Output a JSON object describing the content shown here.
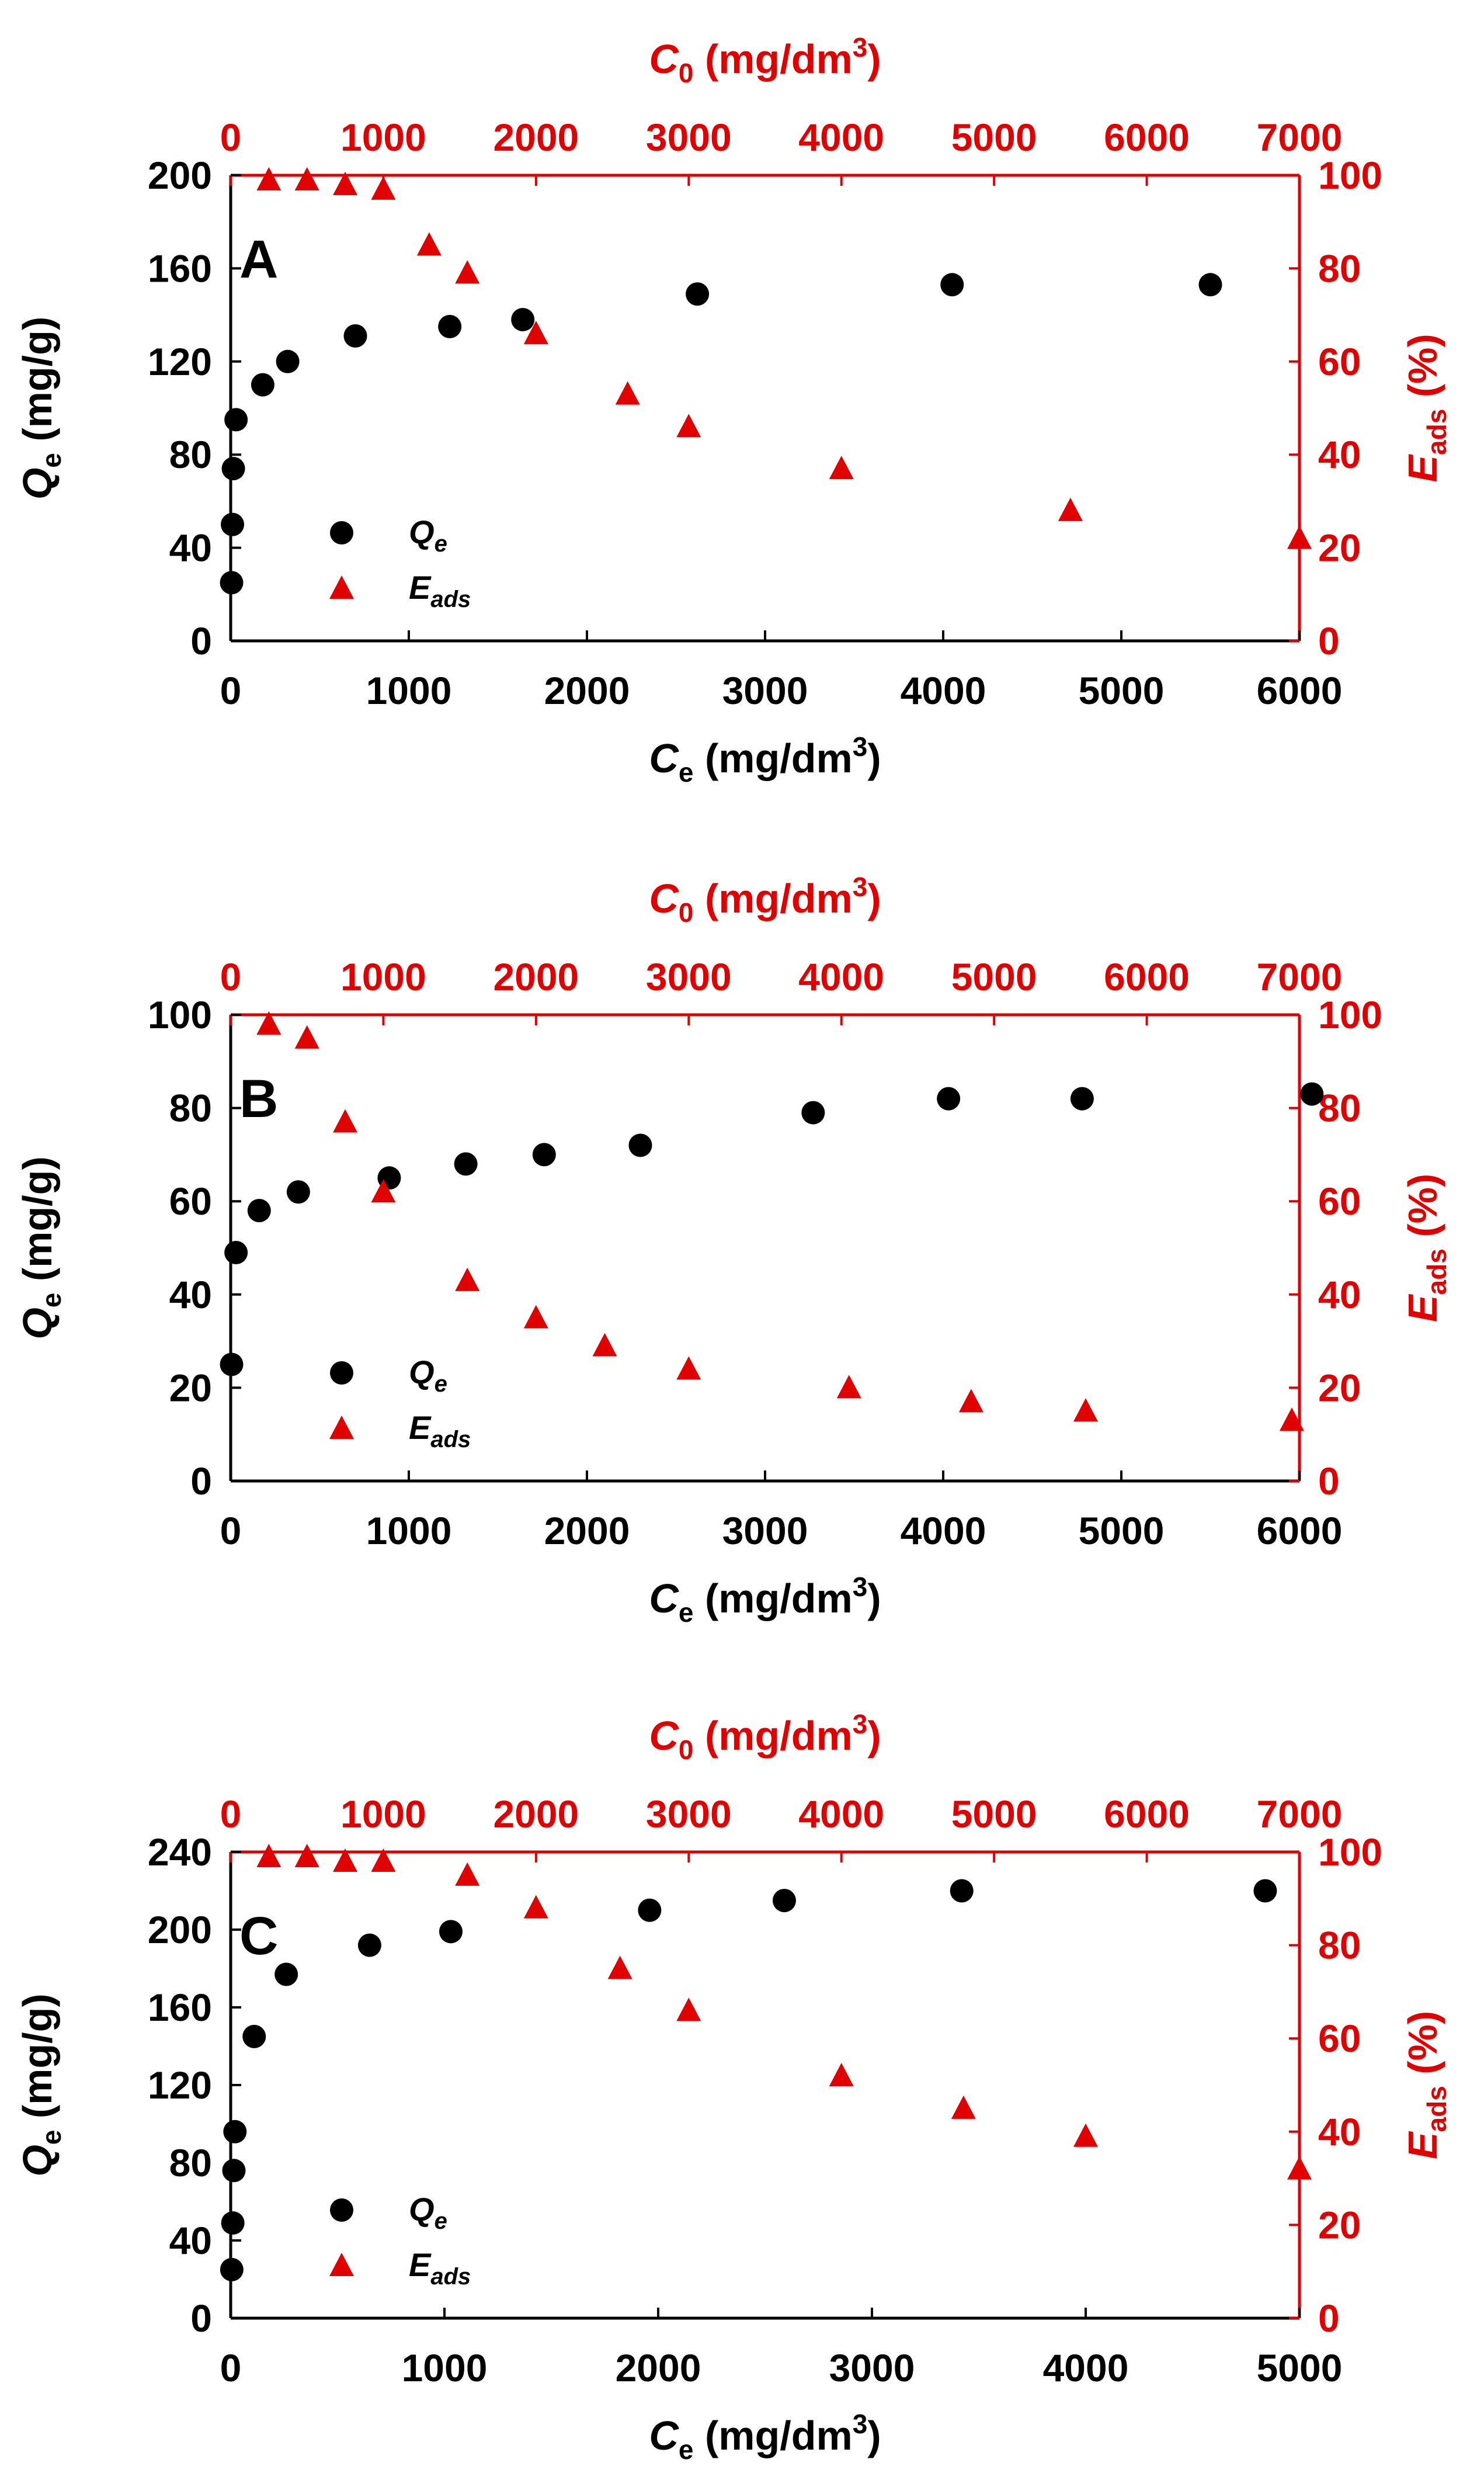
{
  "colors": {
    "qe_series": "#000000",
    "eads_series": "#e00000",
    "axis_black": "#000000",
    "axis_red": "#e00000"
  },
  "axis_titles": {
    "top": {
      "main": "C",
      "sub": "0",
      "unit": " (mg/dm",
      "sup": "3",
      "close": ")"
    },
    "bottom": {
      "main": "C",
      "sub": "e",
      "unit": " (mg/dm",
      "sup": "3",
      "close": ")"
    },
    "left": {
      "main": "Q",
      "sub": "e",
      "unit": " (mg/g)"
    },
    "right": {
      "main": "E",
      "sub": "ads",
      "unit": " (%)"
    }
  },
  "legend": {
    "qe": {
      "main": "Q",
      "sub": "e"
    },
    "eads": {
      "main": "E",
      "sub": "ads"
    }
  },
  "chart_data": [
    {
      "type": "scatter",
      "panel_label": "A",
      "x_bottom": {
        "label": "Ce (mg/dm3)",
        "lim": [
          0,
          6000
        ],
        "ticks": [
          "0",
          "1000",
          "2000",
          "3000",
          "4000",
          "5000",
          "6000"
        ]
      },
      "x_top": {
        "label": "C0 (mg/dm3)",
        "lim": [
          0,
          7000
        ],
        "ticks": [
          "0",
          "1000",
          "2000",
          "3000",
          "4000",
          "5000",
          "6000",
          "7000"
        ]
      },
      "y_left": {
        "label": "Qe (mg/g)",
        "lim": [
          0,
          200
        ],
        "ticks": [
          "0",
          "40",
          "80",
          "120",
          "160",
          "200"
        ]
      },
      "y_right": {
        "label": "Eads (%)",
        "lim": [
          0,
          100
        ],
        "ticks": [
          "0",
          "20",
          "40",
          "60",
          "80",
          "100"
        ]
      },
      "series": [
        {
          "name": "Qe",
          "marker": "circle",
          "x_axis": "bottom",
          "y_axis": "left",
          "x": [
            5,
            10,
            15,
            30,
            180,
            320,
            700,
            1230,
            1640,
            2620,
            4050,
            5500
          ],
          "y": [
            25,
            50,
            74,
            95,
            110,
            120,
            131,
            135,
            138,
            149,
            153,
            153
          ]
        },
        {
          "name": "Eads",
          "marker": "triangle",
          "x_axis": "top",
          "y_axis": "right",
          "x": [
            250,
            500,
            750,
            1000,
            1300,
            1550,
            2000,
            2600,
            3000,
            4000,
            5500,
            7000
          ],
          "y": [
            99,
            99,
            98,
            97,
            85,
            79,
            66,
            53,
            46,
            37,
            28,
            22
          ]
        }
      ]
    },
    {
      "type": "scatter",
      "panel_label": "B",
      "x_bottom": {
        "label": "Ce (mg/dm3)",
        "lim": [
          0,
          6000
        ],
        "ticks": [
          "0",
          "1000",
          "2000",
          "3000",
          "4000",
          "5000",
          "6000"
        ]
      },
      "x_top": {
        "label": "C0 (mg/dm3)",
        "lim": [
          0,
          7000
        ],
        "ticks": [
          "0",
          "1000",
          "2000",
          "3000",
          "4000",
          "5000",
          "6000",
          "7000"
        ]
      },
      "y_left": {
        "label": "Qe (mg/g)",
        "lim": [
          0,
          100
        ],
        "ticks": [
          "0",
          "20",
          "40",
          "60",
          "80",
          "100"
        ]
      },
      "y_right": {
        "label": "Eads (%)",
        "lim": [
          0,
          100
        ],
        "ticks": [
          "0",
          "20",
          "40",
          "60",
          "80",
          "100"
        ]
      },
      "series": [
        {
          "name": "Qe",
          "marker": "circle",
          "x_axis": "bottom",
          "y_axis": "left",
          "x": [
            5,
            30,
            160,
            380,
            890,
            1320,
            1760,
            2300,
            3270,
            4030,
            4780,
            6070
          ],
          "y": [
            25,
            49,
            58,
            62,
            65,
            68,
            70,
            72,
            79,
            82,
            82,
            83
          ]
        },
        {
          "name": "Eads",
          "marker": "triangle",
          "x_axis": "top",
          "y_axis": "right",
          "x": [
            250,
            500,
            750,
            1000,
            1550,
            2000,
            2450,
            3000,
            4050,
            4850,
            5600,
            6950
          ],
          "y": [
            98,
            95,
            77,
            62,
            43,
            35,
            29,
            24,
            20,
            17,
            15,
            13
          ]
        }
      ]
    },
    {
      "type": "scatter",
      "panel_label": "C",
      "x_bottom": {
        "label": "Ce (mg/dm3)",
        "lim": [
          0,
          5000
        ],
        "ticks": [
          "0",
          "1000",
          "2000",
          "3000",
          "4000",
          "5000"
        ]
      },
      "x_top": {
        "label": "C0 (mg/dm3)",
        "lim": [
          0,
          7000
        ],
        "ticks": [
          "0",
          "1000",
          "2000",
          "3000",
          "4000",
          "5000",
          "6000",
          "7000"
        ]
      },
      "y_left": {
        "label": "Qe (mg/g)",
        "lim": [
          0,
          240
        ],
        "ticks": [
          "0",
          "40",
          "80",
          "120",
          "160",
          "200",
          "240"
        ]
      },
      "y_right": {
        "label": "Eads (%)",
        "lim": [
          0,
          100
        ],
        "ticks": [
          "0",
          "20",
          "40",
          "60",
          "80",
          "100"
        ]
      },
      "series": [
        {
          "name": "Qe",
          "marker": "circle",
          "x_axis": "bottom",
          "y_axis": "left",
          "x": [
            5,
            10,
            15,
            20,
            110,
            260,
            650,
            1030,
            1960,
            2590,
            3420,
            4840
          ],
          "y": [
            25,
            49,
            76,
            96,
            145,
            177,
            192,
            199,
            210,
            215,
            220,
            220
          ]
        },
        {
          "name": "Eads",
          "marker": "triangle",
          "x_axis": "top",
          "y_axis": "right",
          "x": [
            250,
            500,
            750,
            1000,
            1550,
            2000,
            2550,
            3000,
            4000,
            4800,
            5600,
            7000
          ],
          "y": [
            99,
            99,
            98,
            98,
            95,
            88,
            75,
            66,
            52,
            45,
            39,
            32
          ]
        }
      ]
    }
  ]
}
